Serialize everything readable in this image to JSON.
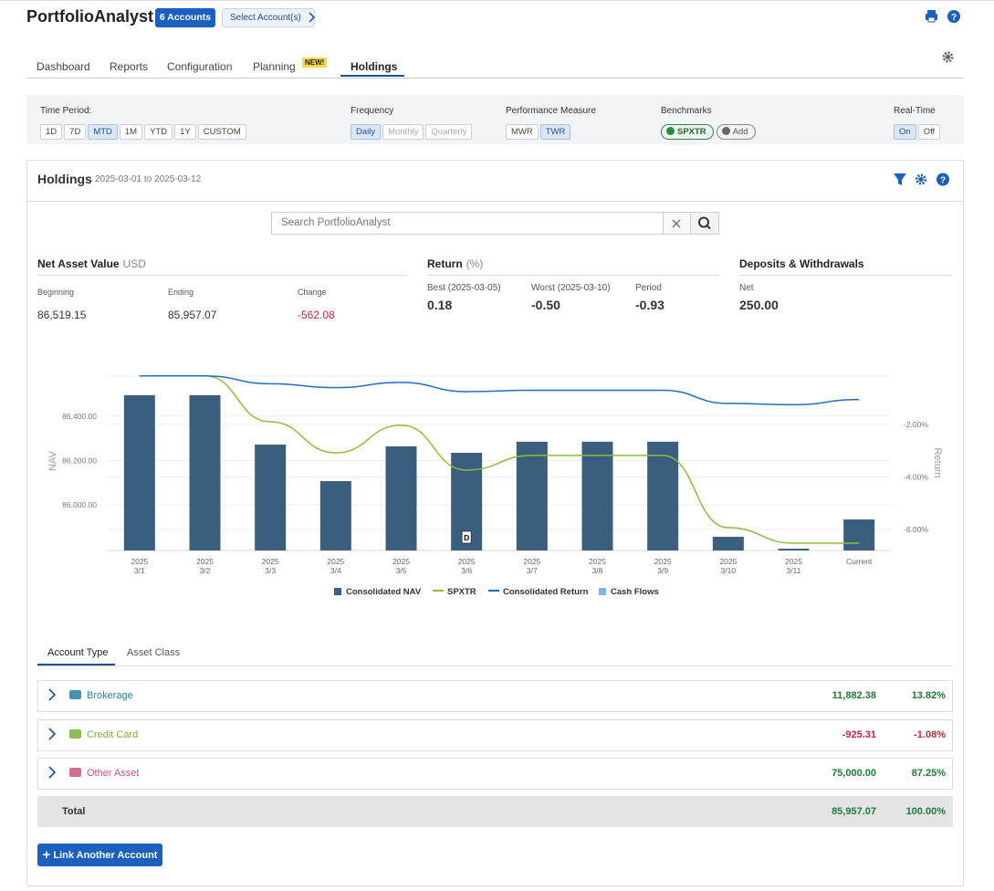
{
  "header": {
    "brand": "PortfolioAnalyst",
    "accounts_badge": "6 Accounts",
    "select_accounts": "Select Account(s)"
  },
  "tabs": {
    "items": [
      "Dashboard",
      "Reports",
      "Configuration",
      "Planning",
      "Holdings"
    ],
    "new_badge": "NEW!",
    "active": 4
  },
  "filters": [
    {
      "label": "Time Period:",
      "options": [
        "1D",
        "7D",
        "MTD",
        "1M",
        "YTD",
        "1Y",
        "CUSTOM"
      ],
      "active": 2
    },
    {
      "label": "Frequency",
      "options": [
        "Daily",
        "Monthly",
        "Quarterly"
      ],
      "active": 0,
      "disabled": [
        1,
        2
      ]
    },
    {
      "label": "Performance Measure",
      "options": [
        "MWR",
        "TWR"
      ],
      "active": 1
    },
    {
      "label": "Benchmarks",
      "options": [
        "SPXTR",
        "Add"
      ]
    },
    {
      "label": "Real-Time",
      "options": [
        "On",
        "Off"
      ],
      "active": 0
    }
  ],
  "holdings": {
    "title": "Holdings",
    "date_range": "2025-03-01 to 2025-03-12",
    "search_placeholder": "Search PortfolioAnalyst"
  },
  "summary": [
    {
      "title": "Net Asset Value",
      "unit": "USD",
      "items": [
        {
          "label": "Beginning",
          "value": "86,519.15"
        },
        {
          "label": "Ending",
          "value": "85,957.07"
        },
        {
          "label": "Change",
          "value": "-562.08",
          "color": "#c0283c"
        }
      ]
    },
    {
      "title": "Return",
      "unit": "(%)",
      "items": [
        {
          "label": "Best (2025-03-05)",
          "value": "0.18"
        },
        {
          "label": "Worst (2025-03-10)",
          "value": "-0.50"
        },
        {
          "label": "Period",
          "value": "-0.93"
        }
      ]
    },
    {
      "title": "Deposits & Withdrawals",
      "items": [
        {
          "label": "Net",
          "value": "250.00"
        }
      ]
    }
  ],
  "chart_data": {
    "type": "bar",
    "categories": [
      [
        "2025",
        "3/1"
      ],
      [
        "2025",
        "3/2"
      ],
      [
        "2025",
        "3/3"
      ],
      [
        "2025",
        "3/4"
      ],
      [
        "2025",
        "3/5"
      ],
      [
        "2025",
        "3/6"
      ],
      [
        "2025",
        "3/7"
      ],
      [
        "2025",
        "3/8"
      ],
      [
        "2025",
        "3/9"
      ],
      [
        "2025",
        "3/10"
      ],
      [
        "2025",
        "3/11"
      ],
      [
        "Current"
      ]
    ],
    "series": [
      {
        "name": "Consolidated NAV",
        "type": "bar",
        "color": "#3b5e7e",
        "values": [
          86495,
          86495,
          86272,
          86107,
          86264,
          86235,
          86285,
          86285,
          86285,
          85856,
          85802,
          85934
        ]
      },
      {
        "name": "SPXTR",
        "type": "line",
        "axis": "y2",
        "color": "#8cbf3f",
        "values": [
          -0.15,
          -0.15,
          -1.9,
          -3.08,
          -2.03,
          -3.74,
          -3.18,
          -3.18,
          -3.18,
          -5.93,
          -6.52,
          -6.52
        ]
      },
      {
        "name": "Consolidated Return",
        "type": "line",
        "axis": "y2",
        "color": "#1f6fbf",
        "values": [
          -0.15,
          -0.15,
          -0.45,
          -0.6,
          -0.4,
          -0.75,
          -0.7,
          -0.7,
          -0.7,
          -1.2,
          -1.25,
          -1.05
        ]
      },
      {
        "name": "Cash Flows",
        "type": "bar",
        "color": "#7fb5e6",
        "values": [
          null,
          null,
          null,
          null,
          null,
          null,
          null,
          null,
          null,
          null,
          null,
          null
        ]
      }
    ],
    "ylabel": "NAV",
    "y2label": "Return",
    "ylim": [
      85794,
      86581
    ],
    "yticks": [
      {
        "value": 86000,
        "label": "86,000.00"
      },
      {
        "value": 86200,
        "label": "86,200.00"
      },
      {
        "value": 86400,
        "label": "86,400.00"
      }
    ],
    "y2lim": [
      -6.8,
      -0.16
    ],
    "y2ticks": [
      {
        "value": -6,
        "label": "-6.00%"
      },
      {
        "value": -4,
        "label": "-4.00%"
      },
      {
        "value": -2,
        "label": "-2.00%"
      }
    ],
    "annotations": [
      {
        "text": "D",
        "index": 5
      }
    ],
    "grid": true,
    "legend": "bottom"
  },
  "table": {
    "tabs": [
      "Account Type",
      "Asset Class"
    ],
    "active": 0,
    "rows": [
      {
        "name": "Brokerage",
        "color": "#2a7fa8",
        "value": "11,882.38",
        "percent": "13.82%",
        "value_color": "#1f7a3a"
      },
      {
        "name": "Credit Card",
        "color": "#7bb33a",
        "value": "-925.31",
        "percent": "-1.08%",
        "value_color": "#c0283c"
      },
      {
        "name": "Other Asset",
        "color": "#c8567a",
        "value": "75,000.00",
        "percent": "87.25%",
        "value_color": "#1f7a3a"
      }
    ],
    "total": {
      "label": "Total",
      "value": "85,957.07",
      "percent": "100.00%",
      "value_color": "#1f7a3a"
    }
  },
  "button": "Link Another Account"
}
